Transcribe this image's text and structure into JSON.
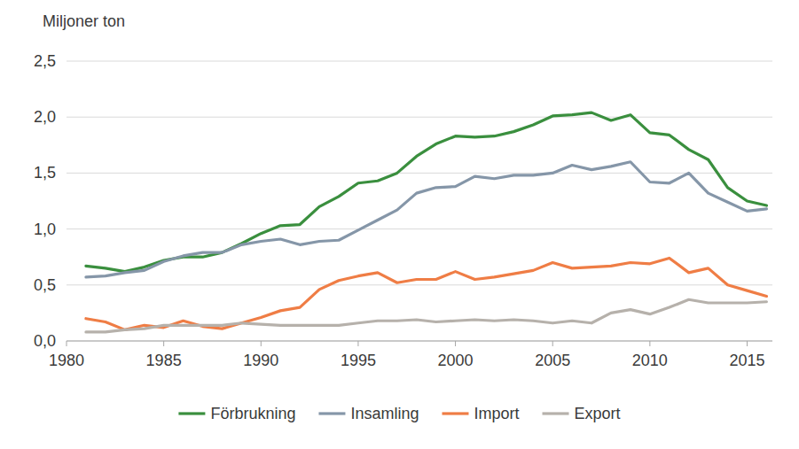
{
  "chart_data": {
    "type": "line",
    "y_label": "Miljoner ton",
    "x": [
      1981,
      1982,
      1983,
      1984,
      1985,
      1986,
      1987,
      1988,
      1989,
      1990,
      1991,
      1992,
      1993,
      1994,
      1995,
      1996,
      1997,
      1998,
      1999,
      2000,
      2001,
      2002,
      2003,
      2004,
      2005,
      2006,
      2007,
      2008,
      2009,
      2010,
      2011,
      2012,
      2013,
      2014,
      2015,
      2016
    ],
    "series": [
      {
        "name": "Förbrukning",
        "color": "#3a8f3e",
        "values": [
          0.67,
          0.65,
          0.62,
          0.66,
          0.72,
          0.75,
          0.75,
          0.79,
          0.87,
          0.96,
          1.03,
          1.04,
          1.2,
          1.29,
          1.41,
          1.43,
          1.5,
          1.65,
          1.76,
          1.83,
          1.82,
          1.83,
          1.87,
          1.93,
          2.01,
          2.02,
          2.04,
          1.97,
          2.02,
          1.86,
          1.84,
          1.71,
          1.62,
          1.37,
          1.25,
          1.21
        ]
      },
      {
        "name": "Insamling",
        "color": "#8596a8",
        "values": [
          0.57,
          0.58,
          0.61,
          0.63,
          0.71,
          0.76,
          0.79,
          0.79,
          0.86,
          0.89,
          0.91,
          0.86,
          0.89,
          0.9,
          0.99,
          1.08,
          1.17,
          1.32,
          1.37,
          1.38,
          1.47,
          1.45,
          1.48,
          1.48,
          1.5,
          1.57,
          1.53,
          1.56,
          1.6,
          1.42,
          1.41,
          1.5,
          1.32,
          1.24,
          1.16,
          1.18
        ]
      },
      {
        "name": "Import",
        "color": "#ef7d45",
        "values": [
          0.2,
          0.17,
          0.1,
          0.14,
          0.12,
          0.18,
          0.13,
          0.11,
          0.16,
          0.21,
          0.27,
          0.3,
          0.46,
          0.54,
          0.58,
          0.61,
          0.52,
          0.55,
          0.55,
          0.62,
          0.55,
          0.57,
          0.6,
          0.63,
          0.7,
          0.65,
          0.66,
          0.67,
          0.7,
          0.69,
          0.74,
          0.61,
          0.65,
          0.5,
          0.45,
          0.4
        ]
      },
      {
        "name": "Export",
        "color": "#b6b1ab",
        "values": [
          0.08,
          0.08,
          0.1,
          0.11,
          0.14,
          0.14,
          0.14,
          0.14,
          0.16,
          0.15,
          0.14,
          0.14,
          0.14,
          0.14,
          0.16,
          0.18,
          0.18,
          0.19,
          0.17,
          0.18,
          0.19,
          0.18,
          0.19,
          0.18,
          0.16,
          0.18,
          0.16,
          0.25,
          0.28,
          0.24,
          0.3,
          0.37,
          0.34,
          0.34,
          0.34,
          0.35
        ]
      }
    ],
    "xlim": [
      1980,
      2016.3
    ],
    "xticks": [
      1980,
      1985,
      1990,
      1995,
      2000,
      2005,
      2010,
      2015
    ],
    "ylim": [
      0,
      2.5
    ],
    "yticks": [
      {
        "value": 0,
        "label": "0,0"
      },
      {
        "value": 0.5,
        "label": "0,5"
      },
      {
        "value": 1,
        "label": "1,0"
      },
      {
        "value": 1.5,
        "label": "1,5"
      },
      {
        "value": 2,
        "label": "2,0"
      },
      {
        "value": 2.5,
        "label": "2,5"
      }
    ],
    "grid": true,
    "legend": "bottom"
  }
}
